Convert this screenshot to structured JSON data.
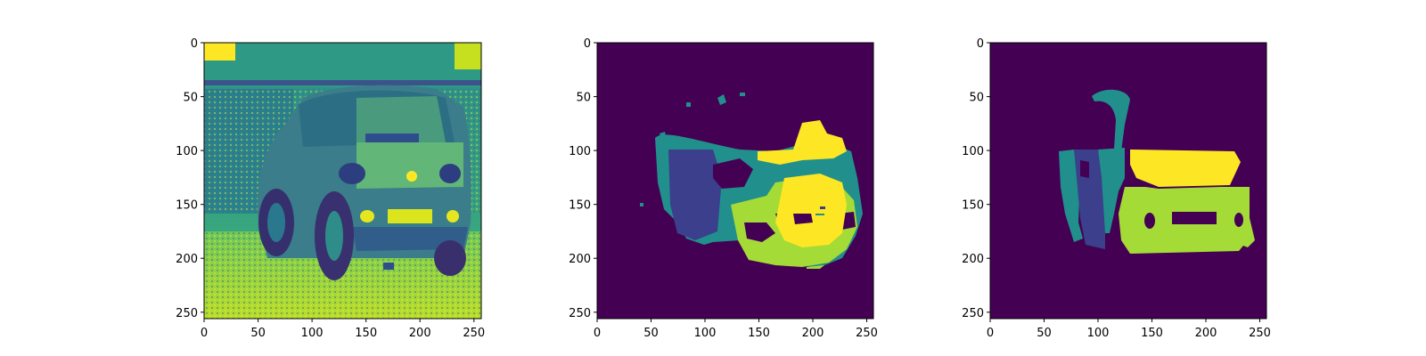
{
  "figure": {
    "panels": [
      {
        "id": "grayscale-image",
        "description": "viridis-mapped grayscale photo of a hatchback car seen from rear-left, parked in front of a building",
        "x_ticks": [
          "0",
          "50",
          "100",
          "150",
          "200",
          "250"
        ],
        "y_ticks": [
          "0",
          "50",
          "100",
          "150",
          "200",
          "250"
        ]
      },
      {
        "id": "predicted-mask",
        "description": "segmentation mask prediction with noisy regions",
        "x_ticks": [
          "0",
          "50",
          "100",
          "150",
          "200",
          "250"
        ],
        "y_ticks": [
          "0",
          "50",
          "100",
          "150",
          "200",
          "250"
        ]
      },
      {
        "id": "ground-truth-mask",
        "description": "clean segmentation mask of car parts",
        "x_ticks": [
          "0",
          "50",
          "100",
          "150",
          "200",
          "250"
        ],
        "y_ticks": [
          "0",
          "50",
          "100",
          "150",
          "200",
          "250"
        ]
      }
    ],
    "colormap": {
      "background": "#440154",
      "class_1": "#3b3f8c",
      "class_2": "#21908d",
      "class_3": "#35b779",
      "class_4": "#a5db36",
      "class_5": "#fde725"
    }
  }
}
